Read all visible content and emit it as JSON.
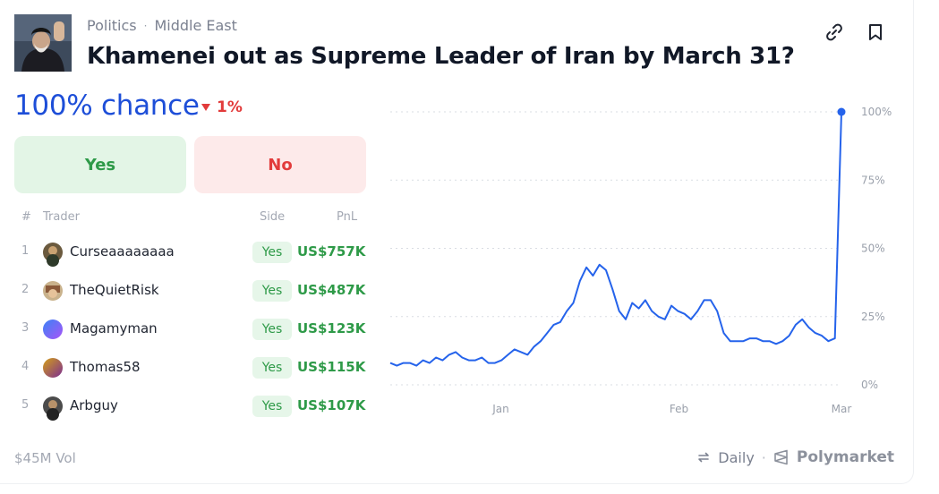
{
  "header": {
    "breadcrumb": [
      "Politics",
      "Middle East"
    ],
    "breadcrumb_sep": "·",
    "title": "Khamenei out as Supreme Leader of Iran by March 31?",
    "actions": [
      "link-icon",
      "bookmark-icon"
    ]
  },
  "market": {
    "chance": "100% chance",
    "delta": "1%",
    "delta_direction": "down",
    "yes_label": "Yes",
    "no_label": "No"
  },
  "traders": {
    "columns": {
      "rank": "#",
      "trader": "Trader",
      "side": "Side",
      "pnl": "PnL"
    },
    "rows": [
      {
        "rank": "1",
        "name": "Curseaaaaaaaa",
        "side": "Yes",
        "pnl": "US$757K"
      },
      {
        "rank": "2",
        "name": "TheQuietRisk",
        "side": "Yes",
        "pnl": "US$487K"
      },
      {
        "rank": "3",
        "name": "Magamyman",
        "side": "Yes",
        "pnl": "US$123K"
      },
      {
        "rank": "4",
        "name": "Thomas58",
        "side": "Yes",
        "pnl": "US$115K"
      },
      {
        "rank": "5",
        "name": "Arbguy",
        "side": "Yes",
        "pnl": "US$107K"
      }
    ]
  },
  "footer": {
    "volume": "$45M Vol",
    "interval": "Daily",
    "separator": "·",
    "brand": "Polymarket"
  },
  "colors": {
    "accent_blue": "#1d4ed8",
    "line": "#2563eb",
    "yes_green": "#2e9a48",
    "no_red": "#e23b3b"
  },
  "chart_data": {
    "type": "line",
    "x_ticks": [
      "Jan",
      "Feb",
      "Mar"
    ],
    "y_ticks": [
      "100%",
      "75%",
      "50%",
      "25%",
      "0%"
    ],
    "ylim": [
      0,
      100
    ],
    "grid": true,
    "series": [
      {
        "values": [
          8,
          7,
          8,
          8,
          7,
          9,
          8,
          10,
          9,
          11,
          12,
          10,
          9,
          9,
          10,
          8,
          8,
          9,
          11,
          13,
          12,
          11,
          14,
          16,
          19,
          22,
          23,
          27,
          30,
          38,
          43,
          40,
          44,
          42,
          35,
          27,
          24,
          30,
          28,
          31,
          27,
          25,
          24,
          29,
          27,
          26,
          24,
          27,
          31,
          31,
          27,
          19,
          16,
          16,
          16,
          17,
          17,
          16,
          16,
          15,
          16,
          18,
          22,
          24,
          21,
          19,
          18,
          16,
          17,
          100
        ],
        "points_label_last": "100%"
      }
    ]
  }
}
